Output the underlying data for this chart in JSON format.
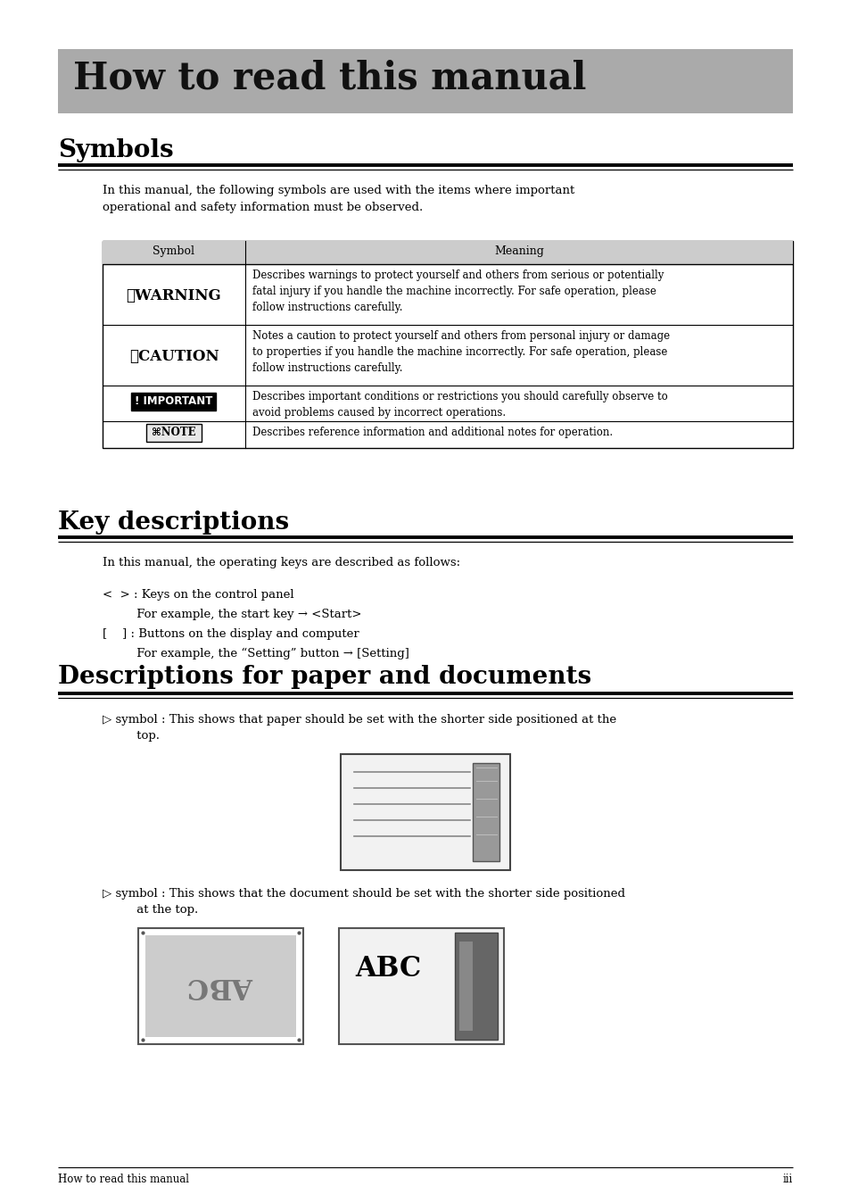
{
  "page_bg": "#ffffff",
  "title_bg": "#aaaaaa",
  "title_text": "How to read this manual",
  "section1_heading": "Symbols",
  "section1_intro": "In this manual, the following symbols are used with the items where important\noperational and safety information must be observed.",
  "table_header_bg": "#cccccc",
  "table_col1_header": "Symbol",
  "table_col2_header": "Meaning",
  "table_rows": [
    {
      "symbol_text": "⚠WARNING",
      "symbol_style": "warning",
      "meaning": "Describes warnings to protect yourself and others from serious or potentially\nfatal injury if you handle the machine incorrectly. For safe operation, please\nfollow instructions carefully."
    },
    {
      "symbol_text": "⚠CAUTION",
      "symbol_style": "caution",
      "meaning": "Notes a caution to protect yourself and others from personal injury or damage\nto properties if you handle the machine incorrectly. For safe operation, please\nfollow instructions carefully."
    },
    {
      "symbol_text": "! IMPORTANT",
      "symbol_style": "important",
      "meaning": "Describes important conditions or restrictions you should carefully observe to\navoid problems caused by incorrect operations."
    },
    {
      "symbol_text": "⌘NOTE",
      "symbol_style": "note",
      "meaning": "Describes reference information and additional notes for operation."
    }
  ],
  "section2_heading": "Key descriptions",
  "section2_intro": "In this manual, the operating keys are described as follows:",
  "section2_line1": "<  > : Keys on the control panel",
  "section2_line2": "         For example, the start key → <Start>",
  "section2_line3": "[    ] : Buttons on the display and computer",
  "section2_line4": "         For example, the “Setting” button → [Setting]",
  "section3_heading": "Descriptions for paper and documents",
  "section3_item1_a": "▷ symbol : This shows that paper should be set with the shorter side positioned at the",
  "section3_item1_b": "         top.",
  "section3_item2_a": "▷ symbol : This shows that the document should be set with the shorter side positioned",
  "section3_item2_b": "         at the top.",
  "footer_left": "How to read this manual",
  "footer_right": "iii"
}
